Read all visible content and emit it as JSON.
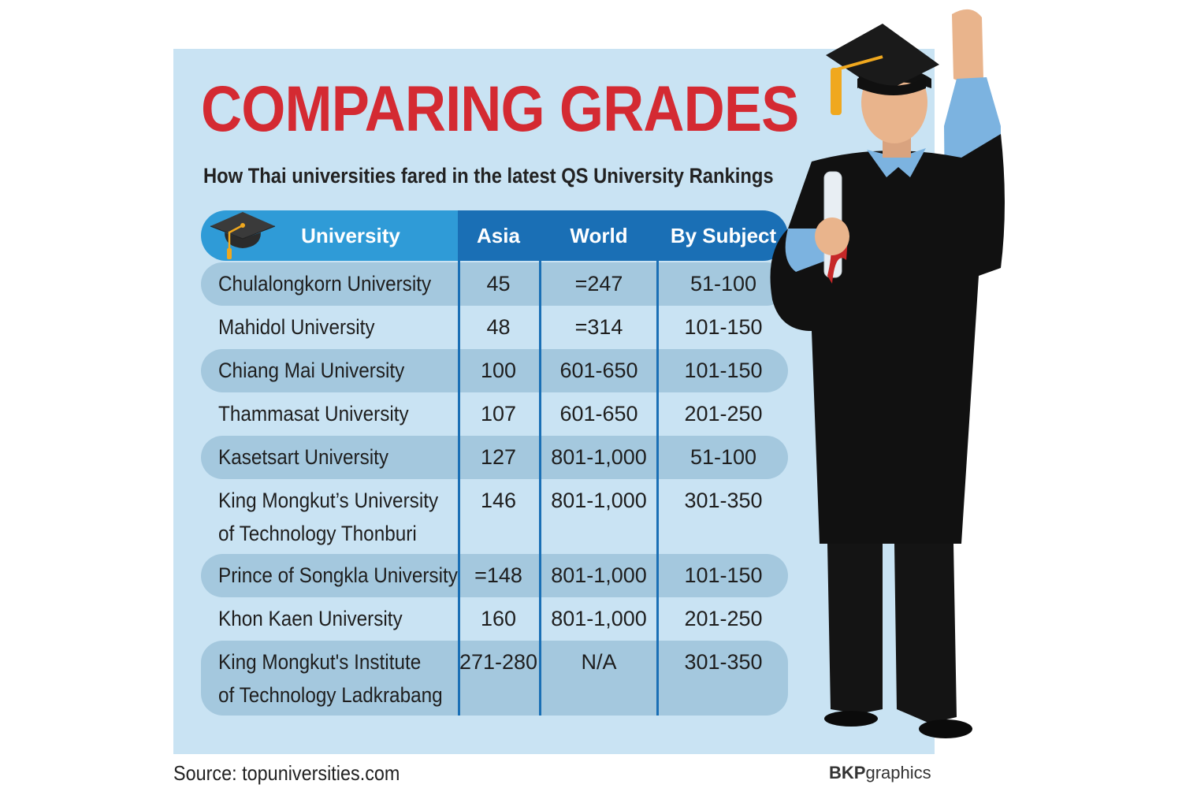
{
  "title": "COMPARING GRADES",
  "subtitle": "How Thai universities fared in the latest QS University Rankings",
  "source": "Source: topuniversities.com",
  "credit_bold": "BKP",
  "credit_rest": "graphics",
  "colors": {
    "title": "#d42a32",
    "panel": "#c9e3f3",
    "band": "#a4c8de",
    "header_light": "#2f9bd7",
    "header_dark": "#1a6fb5"
  },
  "chart_data": {
    "type": "table",
    "title": "COMPARING GRADES",
    "subtitle": "How Thai universities fared in the latest QS University Rankings",
    "columns": [
      "University",
      "Asia",
      "World",
      "By Subject"
    ],
    "rows": [
      {
        "name": [
          "Chulalongkorn University"
        ],
        "asia": "45",
        "world": "=247",
        "subject": "51-100"
      },
      {
        "name": [
          "Mahidol University"
        ],
        "asia": "48",
        "world": "=314",
        "subject": "101-150"
      },
      {
        "name": [
          "Chiang Mai University"
        ],
        "asia": "100",
        "world": "601-650",
        "subject": "101-150"
      },
      {
        "name": [
          "Thammasat University"
        ],
        "asia": "107",
        "world": "601-650",
        "subject": "201-250"
      },
      {
        "name": [
          "Kasetsart University"
        ],
        "asia": "127",
        "world": "801-1,000",
        "subject": "51-100"
      },
      {
        "name": [
          "King Mongkut’s University",
          "of Technology Thonburi"
        ],
        "asia": "146",
        "world": "801-1,000",
        "subject": "301-350"
      },
      {
        "name": [
          "Prince of Songkla University"
        ],
        "asia": "=148",
        "world": "801-1,000",
        "subject": "101-150"
      },
      {
        "name": [
          "Khon Kaen University"
        ],
        "asia": "160",
        "world": "801-1,000",
        "subject": "201-250"
      },
      {
        "name": [
          "King Mongkut's Institute",
          "of Technology Ladkrabang"
        ],
        "asia": "271-280",
        "world": "N/A",
        "subject": "301-350"
      }
    ]
  },
  "icons": [
    "graduation-cap-icon",
    "graduate-figure-illustration"
  ]
}
